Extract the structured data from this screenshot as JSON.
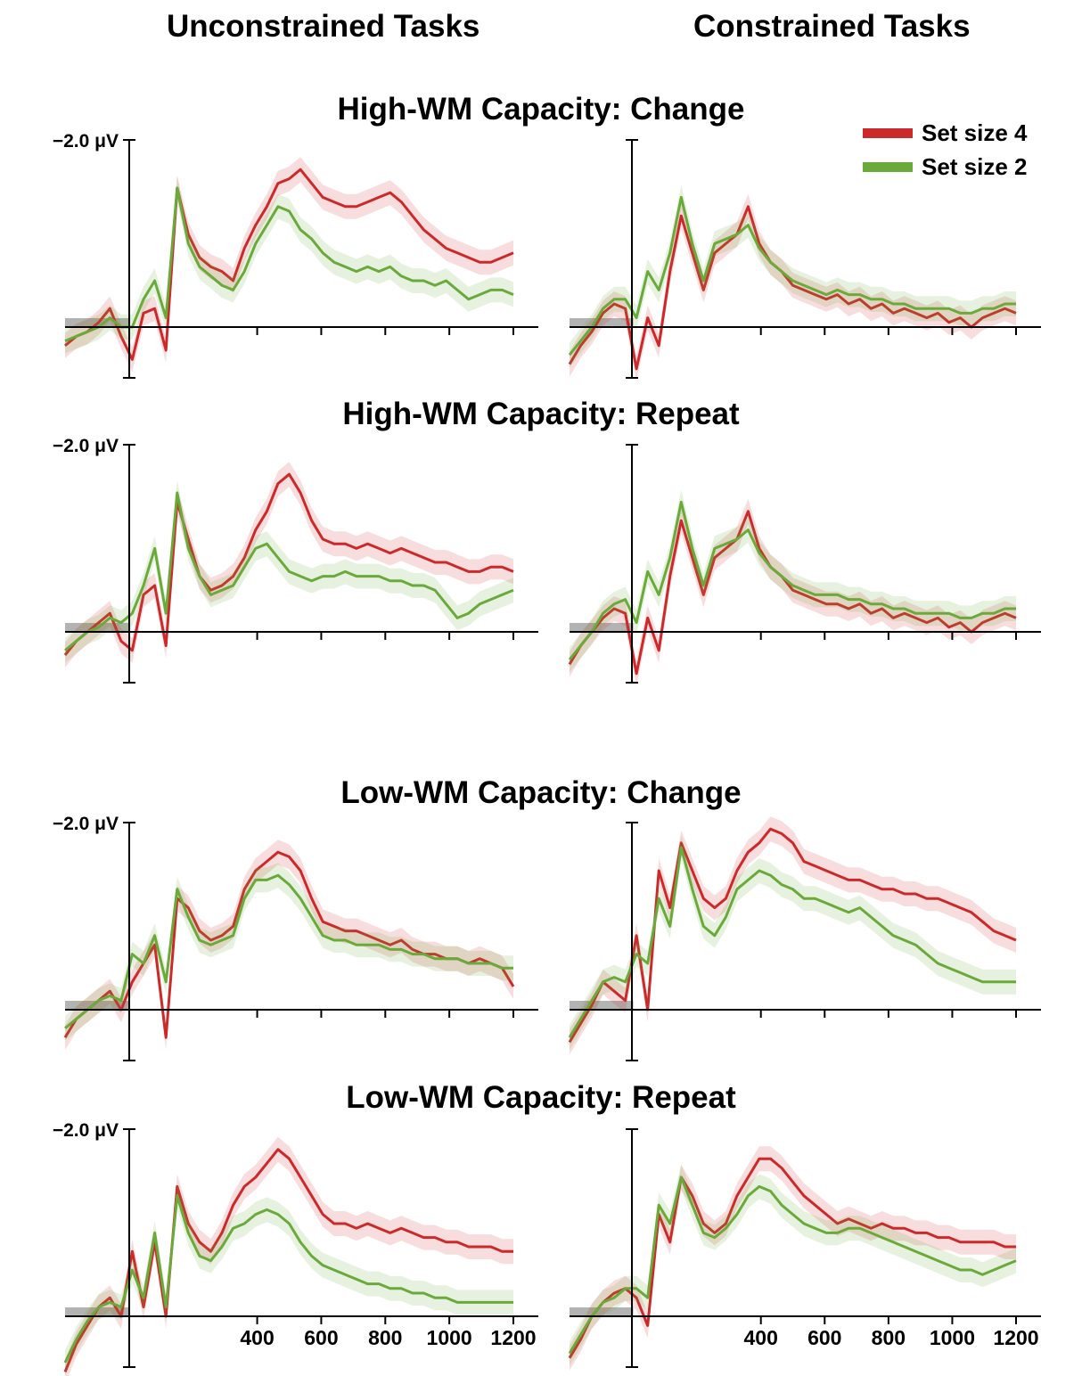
{
  "column_headers": [
    "Unconstrained Tasks",
    "Constrained Tasks"
  ],
  "row_titles": [
    "High-WM Capacity: Change",
    "High-WM Capacity: Repeat",
    "Low-WM Capacity: Change",
    "Low-WM Capacity: Repeat"
  ],
  "legend": [
    {
      "label": "Set size 4",
      "color": "#cc2a2a"
    },
    {
      "label": "Set size 2",
      "color": "#6aaa3a"
    }
  ],
  "y_scale_label": "−2.0 μV",
  "chart_data": {
    "type": "line",
    "x_ticks": [
      400,
      600,
      800,
      1000,
      1200
    ],
    "xlim": [
      -200,
      1200
    ],
    "ylim": [
      -0.55,
      2.0
    ],
    "negative_up": true,
    "baseline_window": [
      -200,
      0
    ],
    "series_colors": {
      "Set size 4": "#cc2a2a",
      "Set size 2": "#6aaa3a"
    },
    "panels": [
      {
        "row": 0,
        "col": 0,
        "series": [
          {
            "name": "Set size 4",
            "values": [
              -0.2,
              -0.1,
              -0.05,
              0.05,
              0.2,
              -0.1,
              -0.35,
              0.15,
              0.2,
              -0.25,
              1.5,
              1.0,
              0.75,
              0.65,
              0.6,
              0.5,
              0.85,
              1.1,
              1.3,
              1.55,
              1.6,
              1.7,
              1.55,
              1.4,
              1.35,
              1.3,
              1.3,
              1.35,
              1.4,
              1.45,
              1.35,
              1.2,
              1.05,
              0.95,
              0.85,
              0.8,
              0.75,
              0.7,
              0.7,
              0.75,
              0.8
            ]
          },
          {
            "name": "Set size 2",
            "values": [
              -0.15,
              -0.1,
              -0.05,
              0.0,
              0.1,
              0.0,
              0.0,
              0.3,
              0.5,
              0.1,
              1.5,
              0.9,
              0.65,
              0.55,
              0.45,
              0.4,
              0.6,
              0.9,
              1.1,
              1.3,
              1.25,
              1.05,
              0.95,
              0.8,
              0.7,
              0.65,
              0.6,
              0.65,
              0.6,
              0.65,
              0.55,
              0.5,
              0.5,
              0.45,
              0.5,
              0.4,
              0.3,
              0.35,
              0.4,
              0.4,
              0.35
            ]
          }
        ]
      },
      {
        "row": 0,
        "col": 1,
        "series": [
          {
            "name": "Set size 4",
            "values": [
              -0.4,
              -0.2,
              -0.05,
              0.15,
              0.25,
              0.2,
              -0.45,
              0.1,
              -0.2,
              0.6,
              1.2,
              0.8,
              0.4,
              0.8,
              0.9,
              1.0,
              1.3,
              0.9,
              0.7,
              0.6,
              0.45,
              0.4,
              0.35,
              0.3,
              0.35,
              0.25,
              0.3,
              0.2,
              0.25,
              0.15,
              0.2,
              0.15,
              0.1,
              0.15,
              0.05,
              0.1,
              0.0,
              0.1,
              0.15,
              0.2,
              0.15
            ]
          },
          {
            "name": "Set size 2",
            "values": [
              -0.3,
              -0.15,
              0.0,
              0.2,
              0.3,
              0.3,
              0.1,
              0.6,
              0.4,
              0.8,
              1.4,
              0.9,
              0.5,
              0.9,
              0.95,
              1.0,
              1.1,
              0.85,
              0.7,
              0.6,
              0.5,
              0.45,
              0.4,
              0.35,
              0.4,
              0.35,
              0.35,
              0.3,
              0.3,
              0.25,
              0.25,
              0.2,
              0.2,
              0.2,
              0.2,
              0.15,
              0.15,
              0.2,
              0.2,
              0.25,
              0.25
            ]
          }
        ]
      },
      {
        "row": 1,
        "col": 0,
        "series": [
          {
            "name": "Set size 4",
            "values": [
              -0.25,
              -0.1,
              0.0,
              0.1,
              0.2,
              -0.1,
              -0.2,
              0.4,
              0.5,
              -0.15,
              1.4,
              1.0,
              0.6,
              0.45,
              0.5,
              0.6,
              0.8,
              1.1,
              1.3,
              1.6,
              1.7,
              1.5,
              1.2,
              1.0,
              0.95,
              0.95,
              0.9,
              0.95,
              0.9,
              0.85,
              0.9,
              0.85,
              0.8,
              0.75,
              0.75,
              0.7,
              0.65,
              0.65,
              0.7,
              0.7,
              0.65
            ]
          },
          {
            "name": "Set size 2",
            "values": [
              -0.2,
              -0.1,
              0.0,
              0.05,
              0.15,
              0.1,
              0.2,
              0.5,
              0.9,
              0.2,
              1.5,
              0.9,
              0.6,
              0.4,
              0.45,
              0.5,
              0.7,
              0.9,
              0.95,
              0.8,
              0.65,
              0.6,
              0.55,
              0.6,
              0.6,
              0.65,
              0.6,
              0.6,
              0.6,
              0.55,
              0.55,
              0.5,
              0.5,
              0.45,
              0.3,
              0.15,
              0.2,
              0.3,
              0.35,
              0.4,
              0.45
            ]
          }
        ]
      },
      {
        "row": 1,
        "col": 1,
        "series": [
          {
            "name": "Set size 4",
            "values": [
              -0.35,
              -0.15,
              0.0,
              0.15,
              0.25,
              0.2,
              -0.45,
              0.15,
              -0.2,
              0.6,
              1.2,
              0.8,
              0.4,
              0.8,
              0.9,
              1.0,
              1.3,
              0.9,
              0.7,
              0.6,
              0.45,
              0.4,
              0.35,
              0.3,
              0.3,
              0.25,
              0.3,
              0.2,
              0.25,
              0.15,
              0.2,
              0.15,
              0.1,
              0.15,
              0.05,
              0.1,
              0.0,
              0.1,
              0.15,
              0.2,
              0.15
            ]
          },
          {
            "name": "Set size 2",
            "values": [
              -0.3,
              -0.15,
              0.0,
              0.2,
              0.3,
              0.35,
              0.1,
              0.65,
              0.4,
              0.8,
              1.4,
              0.9,
              0.5,
              0.9,
              0.95,
              1.0,
              1.1,
              0.85,
              0.7,
              0.6,
              0.5,
              0.45,
              0.4,
              0.4,
              0.4,
              0.35,
              0.35,
              0.3,
              0.3,
              0.25,
              0.25,
              0.2,
              0.2,
              0.2,
              0.2,
              0.15,
              0.15,
              0.2,
              0.2,
              0.25,
              0.25
            ]
          }
        ]
      },
      {
        "row": 2,
        "col": 0,
        "series": [
          {
            "name": "Set size 4",
            "values": [
              -0.3,
              -0.1,
              0.0,
              0.1,
              0.2,
              0.0,
              0.3,
              0.5,
              0.7,
              -0.3,
              1.2,
              1.1,
              0.85,
              0.75,
              0.8,
              0.9,
              1.3,
              1.5,
              1.6,
              1.7,
              1.65,
              1.5,
              1.2,
              0.95,
              0.9,
              0.85,
              0.85,
              0.8,
              0.75,
              0.7,
              0.75,
              0.65,
              0.6,
              0.6,
              0.55,
              0.55,
              0.5,
              0.55,
              0.5,
              0.45,
              0.25
            ]
          },
          {
            "name": "Set size 2",
            "values": [
              -0.2,
              -0.1,
              0.0,
              0.1,
              0.15,
              0.1,
              0.6,
              0.5,
              0.8,
              0.3,
              1.3,
              1.0,
              0.75,
              0.7,
              0.75,
              0.8,
              1.2,
              1.4,
              1.4,
              1.45,
              1.35,
              1.2,
              1.0,
              0.8,
              0.75,
              0.75,
              0.7,
              0.7,
              0.7,
              0.65,
              0.65,
              0.6,
              0.6,
              0.55,
              0.55,
              0.55,
              0.5,
              0.5,
              0.5,
              0.45,
              0.45
            ]
          }
        ]
      },
      {
        "row": 2,
        "col": 1,
        "series": [
          {
            "name": "Set size 4",
            "values": [
              -0.35,
              -0.15,
              0.05,
              0.3,
              0.2,
              0.1,
              0.8,
              0.0,
              1.5,
              1.1,
              1.8,
              1.5,
              1.2,
              1.1,
              1.2,
              1.5,
              1.7,
              1.8,
              1.95,
              1.9,
              1.8,
              1.6,
              1.55,
              1.5,
              1.45,
              1.4,
              1.4,
              1.35,
              1.3,
              1.3,
              1.25,
              1.25,
              1.2,
              1.2,
              1.15,
              1.1,
              1.05,
              0.95,
              0.85,
              0.8,
              0.75
            ]
          },
          {
            "name": "Set size 2",
            "values": [
              -0.3,
              -0.1,
              0.1,
              0.3,
              0.35,
              0.3,
              0.6,
              0.5,
              1.2,
              0.9,
              1.75,
              1.3,
              0.9,
              0.8,
              1.0,
              1.3,
              1.4,
              1.5,
              1.45,
              1.35,
              1.3,
              1.2,
              1.2,
              1.15,
              1.1,
              1.05,
              1.1,
              1.0,
              0.9,
              0.8,
              0.75,
              0.7,
              0.6,
              0.5,
              0.45,
              0.4,
              0.35,
              0.3,
              0.3,
              0.3,
              0.3
            ]
          }
        ]
      },
      {
        "row": 3,
        "col": 0,
        "series": [
          {
            "name": "Set size 4",
            "values": [
              -0.6,
              -0.3,
              -0.1,
              0.1,
              0.2,
              0.0,
              0.7,
              0.1,
              0.8,
              0.0,
              1.4,
              1.0,
              0.8,
              0.7,
              0.9,
              1.2,
              1.4,
              1.5,
              1.65,
              1.8,
              1.7,
              1.5,
              1.3,
              1.1,
              1.0,
              1.0,
              0.95,
              1.0,
              0.95,
              0.9,
              0.95,
              0.9,
              0.85,
              0.85,
              0.8,
              0.8,
              0.75,
              0.75,
              0.75,
              0.7,
              0.7
            ]
          },
          {
            "name": "Set size 2",
            "values": [
              -0.5,
              -0.25,
              -0.05,
              0.1,
              0.15,
              0.1,
              0.5,
              0.2,
              0.9,
              0.1,
              1.3,
              0.9,
              0.65,
              0.6,
              0.75,
              0.95,
              1.0,
              1.1,
              1.15,
              1.1,
              1.0,
              0.8,
              0.65,
              0.55,
              0.5,
              0.45,
              0.4,
              0.35,
              0.35,
              0.3,
              0.3,
              0.25,
              0.25,
              0.2,
              0.2,
              0.15,
              0.15,
              0.15,
              0.15,
              0.15,
              0.15
            ]
          }
        ]
      },
      {
        "row": 3,
        "col": 1,
        "series": [
          {
            "name": "Set size 4",
            "values": [
              -0.45,
              -0.25,
              0.0,
              0.15,
              0.25,
              0.3,
              0.2,
              -0.1,
              1.1,
              0.8,
              1.5,
              1.3,
              1.0,
              0.9,
              1.0,
              1.3,
              1.5,
              1.7,
              1.7,
              1.6,
              1.45,
              1.3,
              1.2,
              1.1,
              1.0,
              1.05,
              1.0,
              0.95,
              1.0,
              0.95,
              0.95,
              0.9,
              0.9,
              0.85,
              0.85,
              0.8,
              0.8,
              0.8,
              0.8,
              0.75,
              0.75
            ]
          },
          {
            "name": "Set size 2",
            "values": [
              -0.4,
              -0.2,
              0.0,
              0.15,
              0.2,
              0.3,
              0.3,
              0.2,
              1.2,
              1.0,
              1.5,
              1.2,
              0.9,
              0.85,
              0.95,
              1.1,
              1.3,
              1.4,
              1.35,
              1.2,
              1.1,
              1.0,
              0.95,
              0.9,
              0.9,
              0.95,
              0.95,
              0.9,
              0.85,
              0.8,
              0.75,
              0.7,
              0.65,
              0.6,
              0.55,
              0.5,
              0.5,
              0.45,
              0.5,
              0.55,
              0.6
            ]
          }
        ]
      }
    ]
  }
}
